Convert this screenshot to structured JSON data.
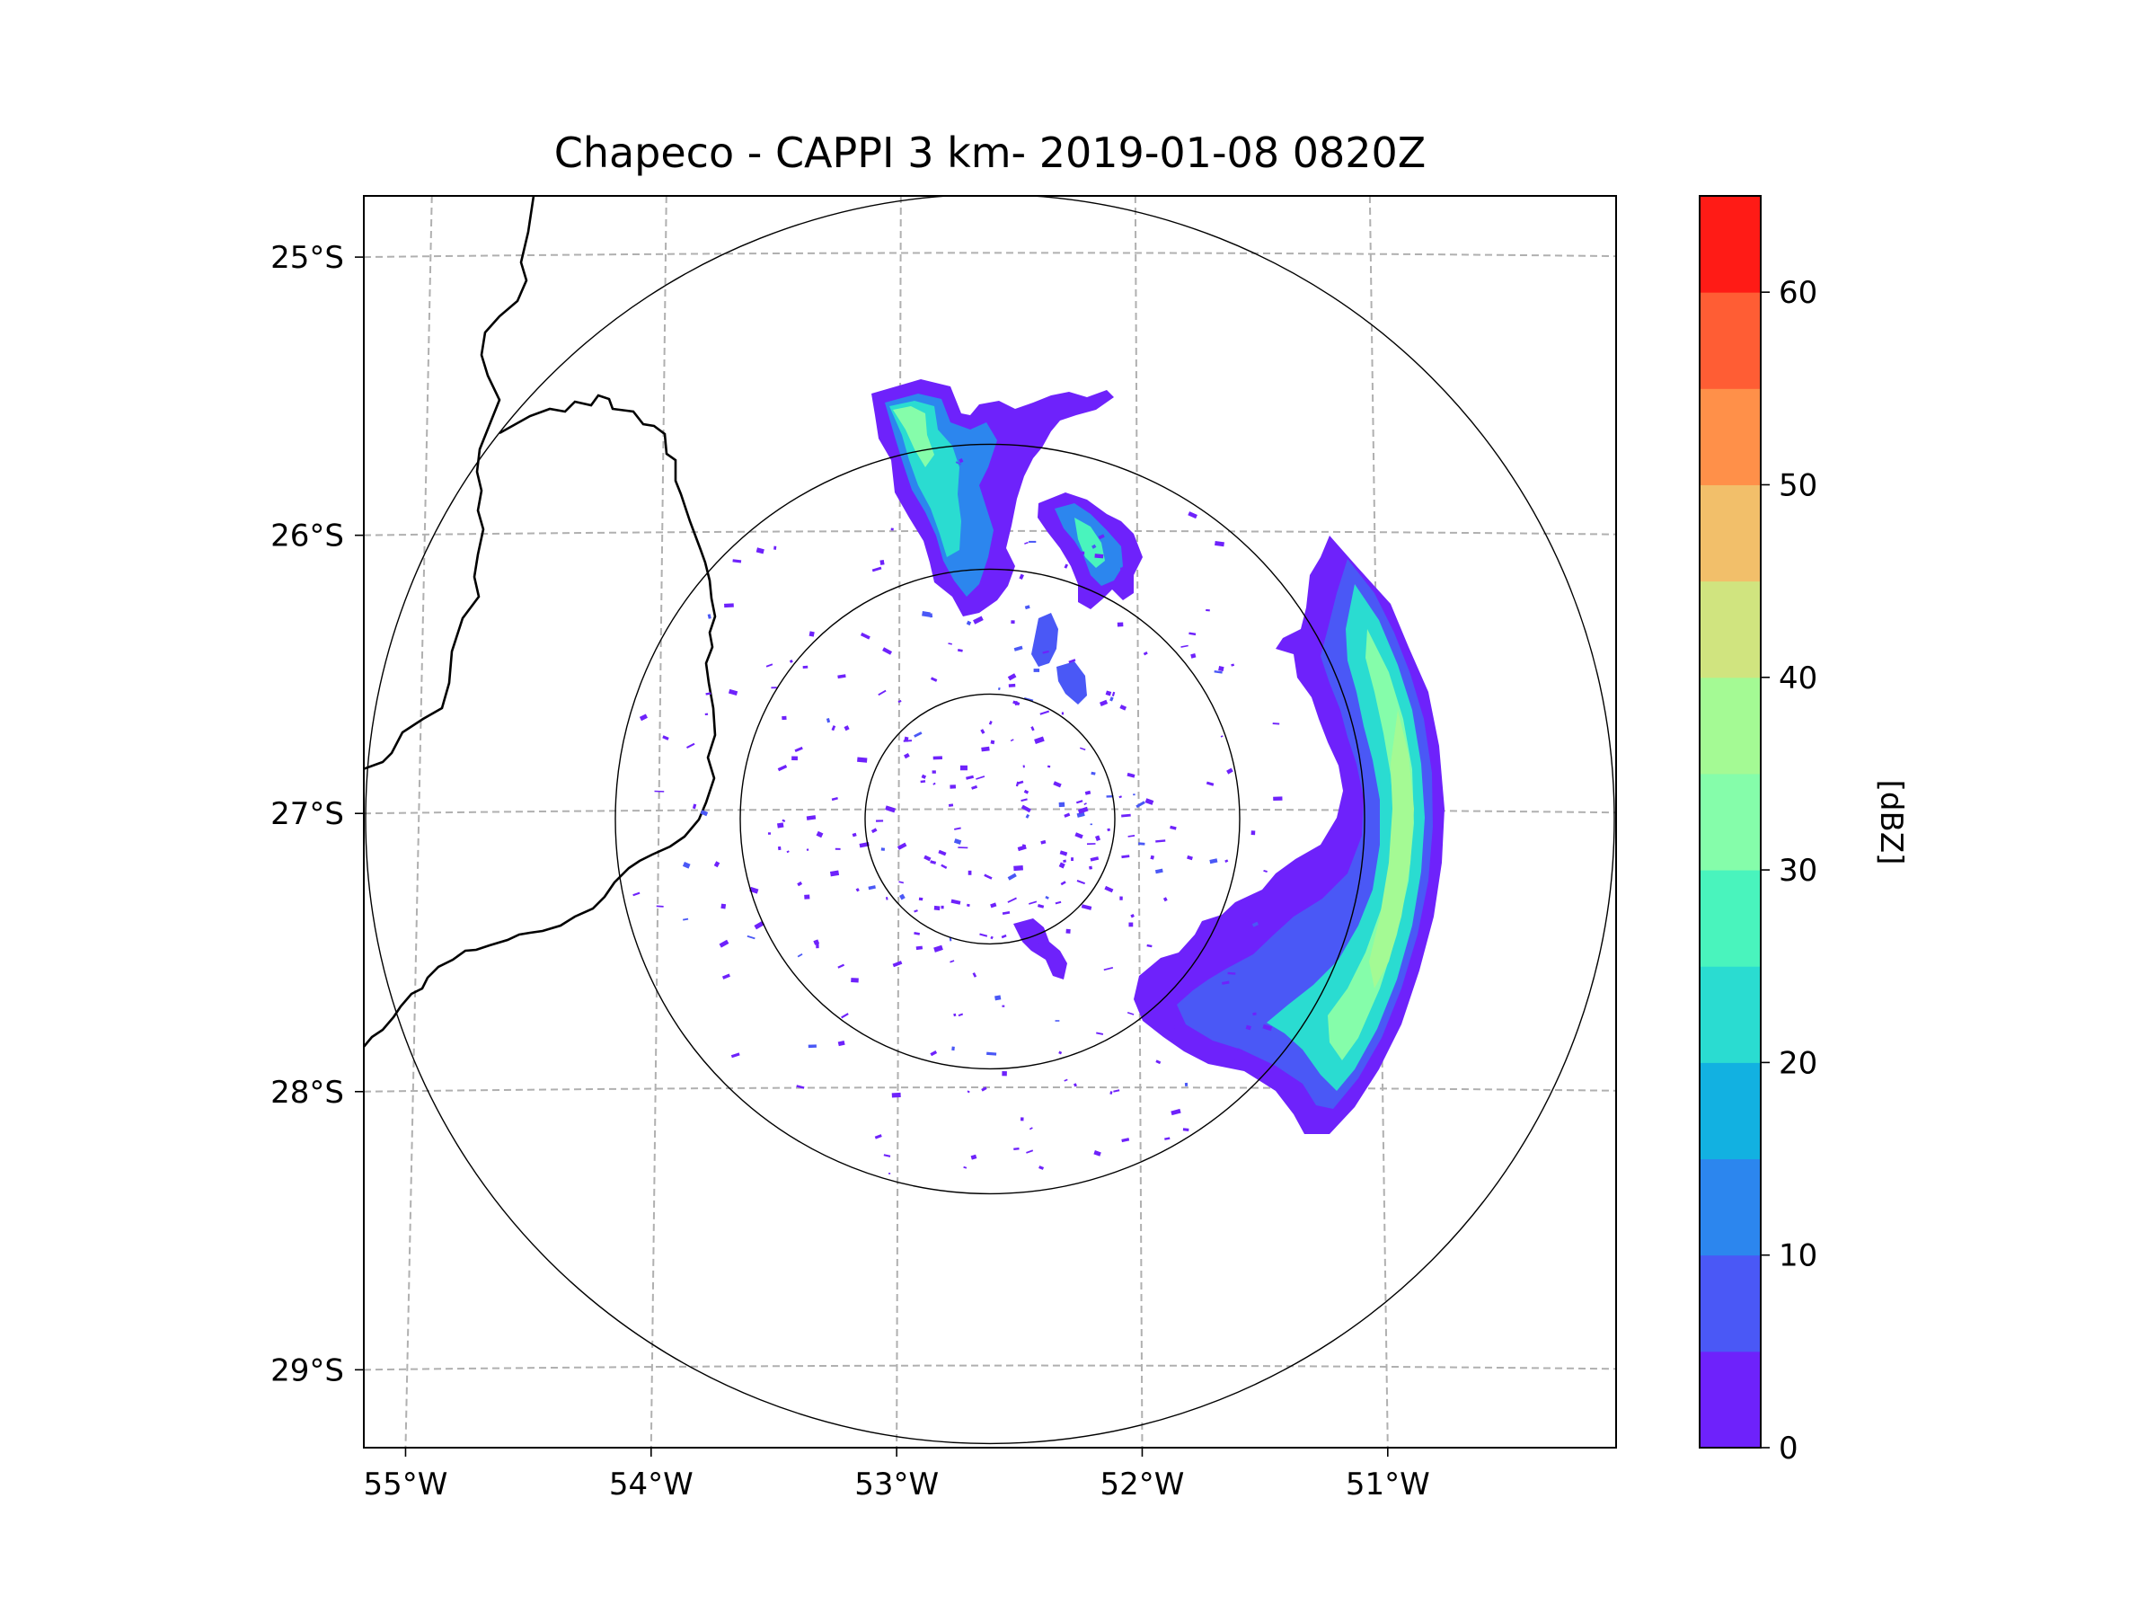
{
  "chart_data": {
    "type": "heatmap",
    "title": "Chapeco - CAPPI 3 km- 2019-01-08 0820Z",
    "xlabel": "",
    "ylabel": "",
    "lon_range": [
      -55.17,
      -50.07
    ],
    "lat_range": [
      -29.28,
      -24.78
    ],
    "x_ticks": [
      {
        "value": -55,
        "label": "55°W"
      },
      {
        "value": -54,
        "label": "54°W"
      },
      {
        "value": -53,
        "label": "53°W"
      },
      {
        "value": -52,
        "label": "52°W"
      },
      {
        "value": -51,
        "label": "51°W"
      }
    ],
    "y_ticks": [
      {
        "value": -25,
        "label": "25°S"
      },
      {
        "value": -26,
        "label": "26°S"
      },
      {
        "value": -27,
        "label": "27°S"
      },
      {
        "value": -28,
        "label": "28°S"
      },
      {
        "value": -29,
        "label": "29°S"
      }
    ],
    "grid": true,
    "radar_center": {
      "lon": -52.62,
      "lat": -27.02
    },
    "range_rings_km": [
      50,
      100,
      150,
      250
    ],
    "colorbar": {
      "label": "[dBZ]",
      "levels": [
        0,
        5,
        10,
        15,
        20,
        25,
        30,
        35,
        40,
        45,
        50,
        55,
        60,
        65
      ],
      "colors": [
        "#6e22fb",
        "#4a58f6",
        "#2c86ee",
        "#12b1e1",
        "#2adcd1",
        "#49f4bd",
        "#85fdaa",
        "#a4fa94",
        "#d0e47f",
        "#f2bf6a",
        "#ff9049",
        "#ff5d34",
        "#ff1b16"
      ],
      "tick_values": [
        0,
        10,
        20,
        30,
        40,
        50,
        60
      ]
    },
    "echo_regions": [
      {
        "name": "north",
        "lon": [
          -53.05,
          -52.1
        ],
        "lat": [
          -25.42,
          -26.28
        ],
        "dbz_max": 35
      },
      {
        "name": "east",
        "lon": [
          -51.8,
          -50.83
        ],
        "lat": [
          -25.98,
          -28.12
        ],
        "dbz_max": 40
      }
    ]
  }
}
